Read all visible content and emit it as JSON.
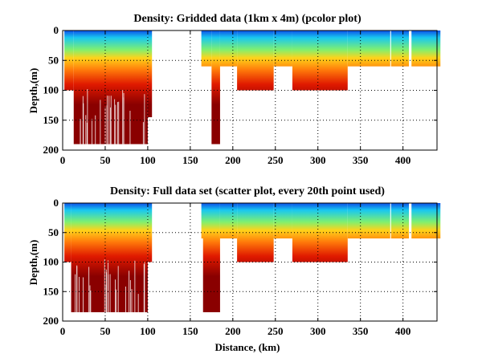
{
  "chart_data": [
    {
      "type": "heatmap",
      "title": "Density: Gridded data (1km x 4m) (pcolor plot)",
      "xlabel": "",
      "ylabel": "Depth,(m)",
      "xlim": [
        0,
        440
      ],
      "ylim": [
        200,
        0
      ],
      "xticks": [
        "0",
        "50",
        "100",
        "150",
        "200",
        "250",
        "300",
        "350",
        "400"
      ],
      "yticks": [
        "0",
        "50",
        "100",
        "150",
        "200"
      ],
      "grid": true,
      "colormap": "jet",
      "colors": {
        "surface": "#0c50e8",
        "near_surface": "#19c8f0",
        "mid_upper": "#7ff070",
        "mid": "#ffd31a",
        "mid_lower": "#ff7a0a",
        "deep": "#e01a00",
        "deepest": "#8a0000"
      },
      "segments": [
        {
          "x0": 2,
          "x1": 13,
          "max_depth": 100
        },
        {
          "x0": 13,
          "x1": 100,
          "max_depth": 190
        },
        {
          "x0": 100,
          "x1": 105,
          "max_depth": 145
        },
        {
          "x0": 163,
          "x1": 175,
          "max_depth": 60
        },
        {
          "x0": 175,
          "x1": 185,
          "max_depth": 190
        },
        {
          "x0": 185,
          "x1": 205,
          "max_depth": 60
        },
        {
          "x0": 205,
          "x1": 248,
          "max_depth": 100
        },
        {
          "x0": 248,
          "x1": 270,
          "max_depth": 60
        },
        {
          "x0": 270,
          "x1": 335,
          "max_depth": 100
        },
        {
          "x0": 335,
          "x1": 385,
          "max_depth": 60
        },
        {
          "x0": 386,
          "x1": 407,
          "max_depth": 60
        },
        {
          "x0": 410,
          "x1": 444,
          "max_depth": 60
        }
      ]
    },
    {
      "type": "scatter",
      "title": "Density: Full data set (scatter plot, every 20th point used)",
      "xlabel": "Distance, (km)",
      "ylabel": "Depth,(m)",
      "xlim": [
        0,
        440
      ],
      "ylim": [
        200,
        0
      ],
      "xticks": [
        "0",
        "50",
        "100",
        "150",
        "200",
        "250",
        "300",
        "350",
        "400"
      ],
      "yticks": [
        "0",
        "50",
        "100",
        "150",
        "200"
      ],
      "grid": true,
      "colormap": "jet",
      "colors": {
        "surface": "#0c50e8",
        "near_surface": "#19c8f0",
        "mid_upper": "#7ff070",
        "mid": "#ffd31a",
        "mid_lower": "#ff7a0a",
        "deep": "#e01a00",
        "deepest": "#8a0000"
      },
      "segments": [
        {
          "x0": 2,
          "x1": 10,
          "max_depth": 100
        },
        {
          "x0": 10,
          "x1": 100,
          "max_depth": 185
        },
        {
          "x0": 100,
          "x1": 105,
          "max_depth": 100
        },
        {
          "x0": 163,
          "x1": 175,
          "max_depth": 60
        },
        {
          "x0": 165,
          "x1": 185,
          "max_depth": 185
        },
        {
          "x0": 185,
          "x1": 205,
          "max_depth": 60
        },
        {
          "x0": 205,
          "x1": 248,
          "max_depth": 100
        },
        {
          "x0": 248,
          "x1": 270,
          "max_depth": 60
        },
        {
          "x0": 270,
          "x1": 335,
          "max_depth": 100
        },
        {
          "x0": 335,
          "x1": 385,
          "max_depth": 60
        },
        {
          "x0": 386,
          "x1": 407,
          "max_depth": 60
        },
        {
          "x0": 410,
          "x1": 444,
          "max_depth": 60
        }
      ]
    }
  ]
}
